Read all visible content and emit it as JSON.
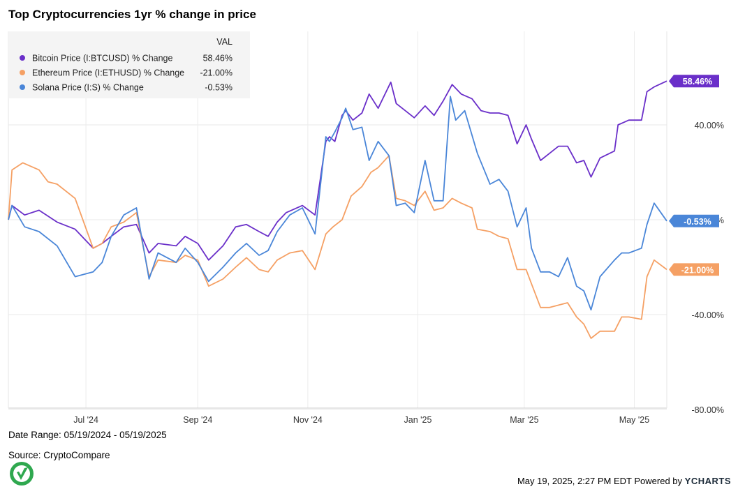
{
  "title": "Top Cryptocurrencies 1yr % change in price",
  "legend": {
    "header": "VAL",
    "items": [
      {
        "label": "Bitcoin Price (I:BTCUSD) % Change",
        "value": "58.46%",
        "color": "#6a2fc9"
      },
      {
        "label": "Ethereum Price (I:ETHUSD) % Change",
        "value": "-21.00%",
        "color": "#f5a064"
      },
      {
        "label": "Solana Price (I:S) % Change",
        "value": "-0.53%",
        "color": "#4a86d8"
      }
    ]
  },
  "end_labels": [
    "58.46%",
    "-0.53%",
    "-21.00%"
  ],
  "date_range": "Date Range: 05/19/2024 - 05/19/2025",
  "source": "Source: CryptoCompare",
  "footer": {
    "timestamp": "May 19, 2025, 2:27 PM EDT Powered by",
    "brand": "YCHARTS"
  },
  "chart_data": {
    "type": "line",
    "title": "Top Cryptocurrencies 1yr % change in price",
    "x_range": [
      "2024-05-19",
      "2025-05-19"
    ],
    "x_ticks": [
      {
        "label": "Jul '24",
        "date": "2024-07-01"
      },
      {
        "label": "Sep '24",
        "date": "2024-09-01"
      },
      {
        "label": "Nov '24",
        "date": "2024-11-01"
      },
      {
        "label": "Jan '25",
        "date": "2025-01-01"
      },
      {
        "label": "Mar '25",
        "date": "2025-03-01"
      },
      {
        "label": "May '25",
        "date": "2025-05-01"
      }
    ],
    "y_ticks": [
      {
        "label": "40.00%",
        "value": 40
      },
      {
        "label": "0.00%",
        "value": 0
      },
      {
        "label": "-40.00%",
        "value": -40
      },
      {
        "label": "-80.00%",
        "value": -80
      }
    ],
    "ylim": [
      -80,
      80
    ],
    "grid": true,
    "legend_position": "top-left",
    "series": [
      {
        "name": "Bitcoin Price (I:BTCUSD) % Change",
        "color": "#6a2fc9",
        "final": 58.46,
        "points": [
          [
            "2024-05-19",
            0
          ],
          [
            "2024-05-21",
            6
          ],
          [
            "2024-05-28",
            2
          ],
          [
            "2024-06-05",
            4
          ],
          [
            "2024-06-15",
            -1
          ],
          [
            "2024-06-25",
            -4
          ],
          [
            "2024-07-05",
            -12
          ],
          [
            "2024-07-10",
            -10
          ],
          [
            "2024-07-15",
            -7
          ],
          [
            "2024-07-22",
            -3
          ],
          [
            "2024-07-29",
            -2
          ],
          [
            "2024-08-05",
            -14
          ],
          [
            "2024-08-10",
            -10
          ],
          [
            "2024-08-20",
            -11
          ],
          [
            "2024-08-25",
            -7
          ],
          [
            "2024-09-01",
            -10
          ],
          [
            "2024-09-07",
            -17
          ],
          [
            "2024-09-15",
            -11
          ],
          [
            "2024-09-22",
            -3
          ],
          [
            "2024-09-28",
            -2
          ],
          [
            "2024-10-05",
            -5
          ],
          [
            "2024-10-10",
            -7
          ],
          [
            "2024-10-15",
            -1
          ],
          [
            "2024-10-20",
            3
          ],
          [
            "2024-10-29",
            6
          ],
          [
            "2024-11-05",
            2
          ],
          [
            "2024-11-11",
            33
          ],
          [
            "2024-11-13",
            35
          ],
          [
            "2024-11-16",
            33
          ],
          [
            "2024-11-20",
            44
          ],
          [
            "2024-11-22",
            46
          ],
          [
            "2024-11-26",
            42
          ],
          [
            "2024-12-01",
            45
          ],
          [
            "2024-12-05",
            53
          ],
          [
            "2024-12-10",
            47
          ],
          [
            "2024-12-17",
            58
          ],
          [
            "2024-12-20",
            49
          ],
          [
            "2024-12-25",
            46
          ],
          [
            "2024-12-30",
            43
          ],
          [
            "2025-01-05",
            48
          ],
          [
            "2025-01-10",
            44
          ],
          [
            "2025-01-15",
            50
          ],
          [
            "2025-01-20",
            57
          ],
          [
            "2025-01-25",
            53
          ],
          [
            "2025-01-31",
            51
          ],
          [
            "2025-02-05",
            46
          ],
          [
            "2025-02-10",
            45
          ],
          [
            "2025-02-15",
            45
          ],
          [
            "2025-02-20",
            44
          ],
          [
            "2025-02-25",
            32
          ],
          [
            "2025-03-02",
            40
          ],
          [
            "2025-03-05",
            34
          ],
          [
            "2025-03-10",
            25
          ],
          [
            "2025-03-15",
            28
          ],
          [
            "2025-03-20",
            31
          ],
          [
            "2025-03-25",
            31
          ],
          [
            "2025-03-30",
            24
          ],
          [
            "2025-04-03",
            25
          ],
          [
            "2025-04-07",
            18
          ],
          [
            "2025-04-12",
            26
          ],
          [
            "2025-04-20",
            29
          ],
          [
            "2025-04-22",
            40
          ],
          [
            "2025-04-28",
            42
          ],
          [
            "2025-05-05",
            42
          ],
          [
            "2025-05-08",
            54
          ],
          [
            "2025-05-12",
            56
          ],
          [
            "2025-05-19",
            58.46
          ]
        ]
      },
      {
        "name": "Ethereum Price (I:ETHUSD) % Change",
        "color": "#f5a064",
        "final": -21.0,
        "points": [
          [
            "2024-05-19",
            0
          ],
          [
            "2024-05-21",
            21
          ],
          [
            "2024-05-27",
            24
          ],
          [
            "2024-06-05",
            21
          ],
          [
            "2024-06-10",
            16
          ],
          [
            "2024-06-15",
            15
          ],
          [
            "2024-06-25",
            9
          ],
          [
            "2024-07-05",
            -12
          ],
          [
            "2024-07-10",
            -10
          ],
          [
            "2024-07-15",
            -3
          ],
          [
            "2024-07-22",
            -1
          ],
          [
            "2024-07-29",
            3
          ],
          [
            "2024-08-05",
            -24
          ],
          [
            "2024-08-10",
            -17
          ],
          [
            "2024-08-20",
            -18
          ],
          [
            "2024-08-25",
            -15
          ],
          [
            "2024-09-01",
            -17
          ],
          [
            "2024-09-07",
            -28
          ],
          [
            "2024-09-15",
            -25
          ],
          [
            "2024-09-22",
            -20
          ],
          [
            "2024-09-28",
            -16
          ],
          [
            "2024-10-05",
            -21
          ],
          [
            "2024-10-10",
            -22
          ],
          [
            "2024-10-15",
            -17
          ],
          [
            "2024-10-22",
            -14
          ],
          [
            "2024-10-29",
            -13
          ],
          [
            "2024-11-05",
            -21
          ],
          [
            "2024-11-11",
            -6
          ],
          [
            "2024-11-15",
            -3
          ],
          [
            "2024-11-20",
            0
          ],
          [
            "2024-11-25",
            10
          ],
          [
            "2024-12-01",
            14
          ],
          [
            "2024-12-06",
            20
          ],
          [
            "2024-12-10",
            22
          ],
          [
            "2024-12-16",
            27
          ],
          [
            "2024-12-20",
            9
          ],
          [
            "2024-12-25",
            8
          ],
          [
            "2024-12-30",
            6
          ],
          [
            "2025-01-05",
            12
          ],
          [
            "2025-01-10",
            4
          ],
          [
            "2025-01-15",
            5
          ],
          [
            "2025-01-20",
            9
          ],
          [
            "2025-01-25",
            7
          ],
          [
            "2025-01-31",
            5
          ],
          [
            "2025-02-03",
            -4
          ],
          [
            "2025-02-10",
            -5
          ],
          [
            "2025-02-15",
            -7
          ],
          [
            "2025-02-20",
            -8
          ],
          [
            "2025-02-25",
            -21
          ],
          [
            "2025-03-02",
            -21
          ],
          [
            "2025-03-05",
            -27
          ],
          [
            "2025-03-10",
            -37
          ],
          [
            "2025-03-15",
            -37
          ],
          [
            "2025-03-20",
            -36
          ],
          [
            "2025-03-25",
            -35
          ],
          [
            "2025-03-30",
            -41
          ],
          [
            "2025-04-03",
            -44
          ],
          [
            "2025-04-07",
            -50
          ],
          [
            "2025-04-12",
            -47
          ],
          [
            "2025-04-20",
            -47
          ],
          [
            "2025-04-24",
            -41
          ],
          [
            "2025-04-28",
            -41
          ],
          [
            "2025-05-05",
            -42
          ],
          [
            "2025-05-08",
            -24
          ],
          [
            "2025-05-12",
            -17
          ],
          [
            "2025-05-19",
            -21.0
          ]
        ]
      },
      {
        "name": "Solana Price (I:S) % Change",
        "color": "#4a86d8",
        "final": -0.53,
        "points": [
          [
            "2024-05-19",
            0
          ],
          [
            "2024-05-21",
            6
          ],
          [
            "2024-05-28",
            -3
          ],
          [
            "2024-06-05",
            -5
          ],
          [
            "2024-06-15",
            -11
          ],
          [
            "2024-06-25",
            -24
          ],
          [
            "2024-07-05",
            -22
          ],
          [
            "2024-07-10",
            -18
          ],
          [
            "2024-07-15",
            -7
          ],
          [
            "2024-07-22",
            2
          ],
          [
            "2024-07-29",
            5
          ],
          [
            "2024-08-05",
            -25
          ],
          [
            "2024-08-10",
            -14
          ],
          [
            "2024-08-20",
            -18
          ],
          [
            "2024-08-25",
            -12
          ],
          [
            "2024-09-01",
            -18
          ],
          [
            "2024-09-07",
            -26
          ],
          [
            "2024-09-15",
            -20
          ],
          [
            "2024-09-22",
            -14
          ],
          [
            "2024-09-28",
            -10
          ],
          [
            "2024-10-05",
            -15
          ],
          [
            "2024-10-10",
            -13
          ],
          [
            "2024-10-15",
            -5
          ],
          [
            "2024-10-22",
            2
          ],
          [
            "2024-10-29",
            5
          ],
          [
            "2024-11-05",
            -6
          ],
          [
            "2024-11-11",
            35
          ],
          [
            "2024-11-13",
            33
          ],
          [
            "2024-11-16",
            37
          ],
          [
            "2024-11-20",
            43
          ],
          [
            "2024-11-22",
            47
          ],
          [
            "2024-11-26",
            38
          ],
          [
            "2024-12-01",
            39
          ],
          [
            "2024-12-05",
            25
          ],
          [
            "2024-12-10",
            33
          ],
          [
            "2024-12-16",
            27
          ],
          [
            "2024-12-20",
            6
          ],
          [
            "2024-12-25",
            7
          ],
          [
            "2024-12-30",
            3
          ],
          [
            "2025-01-05",
            25
          ],
          [
            "2025-01-10",
            8
          ],
          [
            "2025-01-15",
            8
          ],
          [
            "2025-01-19",
            52
          ],
          [
            "2025-01-22",
            42
          ],
          [
            "2025-01-27",
            46
          ],
          [
            "2025-02-03",
            28
          ],
          [
            "2025-02-10",
            15
          ],
          [
            "2025-02-15",
            17
          ],
          [
            "2025-02-20",
            12
          ],
          [
            "2025-02-25",
            -3
          ],
          [
            "2025-03-02",
            5
          ],
          [
            "2025-03-05",
            -12
          ],
          [
            "2025-03-10",
            -22
          ],
          [
            "2025-03-15",
            -22
          ],
          [
            "2025-03-20",
            -24
          ],
          [
            "2025-03-25",
            -16
          ],
          [
            "2025-03-30",
            -28
          ],
          [
            "2025-04-03",
            -30
          ],
          [
            "2025-04-07",
            -38
          ],
          [
            "2025-04-12",
            -24
          ],
          [
            "2025-04-20",
            -17
          ],
          [
            "2025-04-24",
            -14
          ],
          [
            "2025-04-28",
            -14
          ],
          [
            "2025-05-05",
            -12
          ],
          [
            "2025-05-08",
            -2
          ],
          [
            "2025-05-12",
            7
          ],
          [
            "2025-05-19",
            -0.53
          ]
        ]
      }
    ]
  }
}
